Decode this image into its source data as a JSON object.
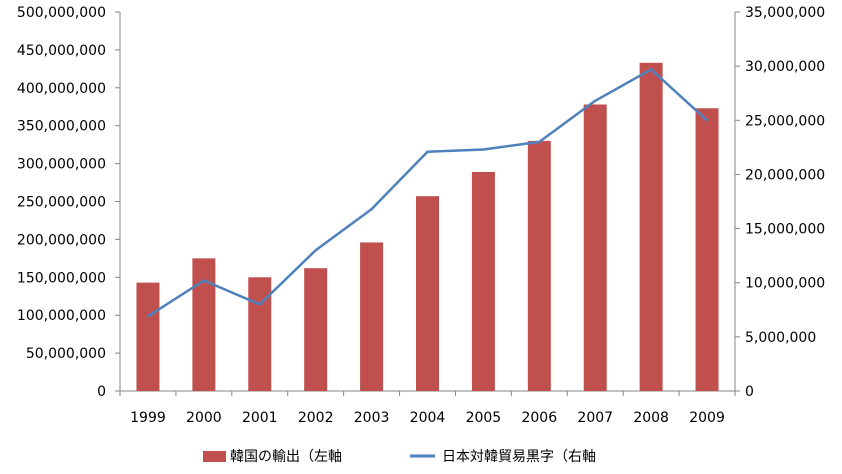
{
  "chart_data": {
    "type": "bar",
    "categories": [
      "1999",
      "2000",
      "2001",
      "2002",
      "2003",
      "2004",
      "2005",
      "2006",
      "2007",
      "2008",
      "2009"
    ],
    "series": [
      {
        "name": "韓国の輸出（左軸",
        "type": "bar",
        "axis": "left",
        "color": "#c0504d",
        "values": [
          143000000,
          175000000,
          150000000,
          162000000,
          196000000,
          257000000,
          289000000,
          330000000,
          378000000,
          433000000,
          373000000
        ]
      },
      {
        "name": "日本対韓貿易黒字（右軸",
        "type": "line",
        "axis": "right",
        "color": "#4f81bd",
        "values": [
          6900000,
          10200000,
          8000000,
          13000000,
          16800000,
          22100000,
          22300000,
          23000000,
          26800000,
          29700000,
          25000000
        ]
      }
    ],
    "y_left": {
      "range": [
        0,
        500000000
      ],
      "ticks": [
        0,
        50000000,
        100000000,
        150000000,
        200000000,
        250000000,
        300000000,
        350000000,
        400000000,
        450000000,
        500000000
      ],
      "tick_labels": [
        "0",
        "50,000,000",
        "100,000,000",
        "150,000,000",
        "200,000,000",
        "250,000,000",
        "300,000,000",
        "350,000,000",
        "400,000,000",
        "450,000,000",
        "500,000,000"
      ]
    },
    "y_right": {
      "range": [
        0,
        35000000
      ],
      "ticks": [
        0,
        5000000,
        10000000,
        15000000,
        20000000,
        25000000,
        30000000,
        35000000
      ],
      "tick_labels": [
        "0",
        "5,000,000",
        "10,000,000",
        "15,000,000",
        "20,000,000",
        "25,000,000",
        "30,000,000",
        "35,000,000"
      ]
    },
    "title": "",
    "grid": "none",
    "legend": {
      "position": "bottom",
      "entries": [
        "韓国の輸出（左軸",
        "日本対韓貿易黒字（右軸"
      ]
    }
  }
}
